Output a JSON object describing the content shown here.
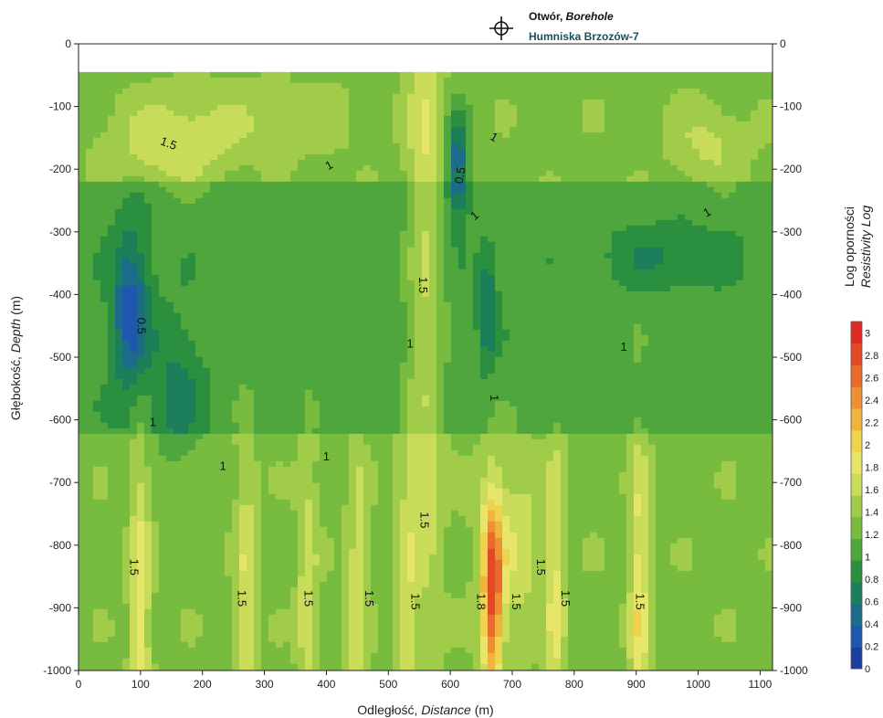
{
  "chart_data": {
    "type": "heatmap",
    "title": "",
    "xlabel": {
      "plain": "Odległość, ",
      "italic": "Distance",
      "unit": " (m)"
    },
    "ylabel": {
      "plain": "Głębokość, ",
      "italic": "Depth",
      "unit": " (m)"
    },
    "colorbar_label": {
      "line1": "Log oporności",
      "line2": "Resistivity Log"
    },
    "well": {
      "label_plain": "Otwór, ",
      "label_italic": "Borehole",
      "name": "Humniska Brzozów-7",
      "x": 625
    },
    "xlim": [
      0,
      1120
    ],
    "ylim": [
      -1000,
      0
    ],
    "data_top_depth": -45,
    "xticks": [
      0,
      100,
      200,
      300,
      400,
      500,
      600,
      700,
      800,
      900,
      1000,
      1100
    ],
    "yticks": [
      0,
      -100,
      -200,
      -300,
      -400,
      -500,
      -600,
      -700,
      -800,
      -900,
      -1000
    ],
    "colorbar_ticks": [
      "0",
      "0.2",
      "0.4",
      "0.6",
      "0.8",
      "1",
      "1.2",
      "1.4",
      "1.6",
      "1.8",
      "2",
      "2.2",
      "2.4",
      "2.6",
      "2.8",
      "3"
    ],
    "colorbar_range": [
      0,
      3.1
    ],
    "colorscale": [
      "#1a3d9e",
      "#1f57b0",
      "#1c6b8a",
      "#1a7f5a",
      "#2a9040",
      "#4ea63c",
      "#77bb3f",
      "#a0cc4a",
      "#c9dc5a",
      "#e8e66a",
      "#efd34e",
      "#f0b43e",
      "#ee8f35",
      "#e86a2c",
      "#e24a26",
      "#dc2b22"
    ],
    "grid": false,
    "contour_labels": [
      {
        "text": "1.5",
        "x": 145,
        "y": -160,
        "rot": 20
      },
      {
        "text": "1",
        "x": 405,
        "y": -195,
        "rot": -30
      },
      {
        "text": "0.5",
        "x": 617,
        "y": -210,
        "rot": -80
      },
      {
        "text": "1",
        "x": 670,
        "y": -150,
        "rot": 30
      },
      {
        "text": "1",
        "x": 640,
        "y": -275,
        "rot": -40
      },
      {
        "text": "1",
        "x": 1015,
        "y": -270,
        "rot": -30
      },
      {
        "text": "1.5",
        "x": 555,
        "y": -385,
        "rot": 90
      },
      {
        "text": "0.5",
        "x": 100,
        "y": -450,
        "rot": 90
      },
      {
        "text": "1",
        "x": 535,
        "y": -480,
        "rot": 0
      },
      {
        "text": "1",
        "x": 880,
        "y": -485,
        "rot": 0
      },
      {
        "text": "1",
        "x": 670,
        "y": -565,
        "rot": 90
      },
      {
        "text": "1",
        "x": 120,
        "y": -605,
        "rot": 0
      },
      {
        "text": "1",
        "x": 400,
        "y": -660,
        "rot": 0
      },
      {
        "text": "1",
        "x": 233,
        "y": -675,
        "rot": 0
      },
      {
        "text": "1.5",
        "x": 557,
        "y": -760,
        "rot": 90
      },
      {
        "text": "1.5",
        "x": 745,
        "y": -835,
        "rot": 90
      },
      {
        "text": "1.5",
        "x": 88,
        "y": -835,
        "rot": 90
      },
      {
        "text": "1.5",
        "x": 262,
        "y": -885,
        "rot": 90
      },
      {
        "text": "1.5",
        "x": 370,
        "y": -885,
        "rot": 90
      },
      {
        "text": "1.5",
        "x": 468,
        "y": -885,
        "rot": 90
      },
      {
        "text": "1.5",
        "x": 542,
        "y": -890,
        "rot": 90
      },
      {
        "text": "1.8",
        "x": 648,
        "y": -890,
        "rot": 90
      },
      {
        "text": "1.5",
        "x": 705,
        "y": -890,
        "rot": 90
      },
      {
        "text": "1.5",
        "x": 785,
        "y": -885,
        "rot": 90
      },
      {
        "text": "1.5",
        "x": 905,
        "y": -890,
        "rot": 90
      }
    ]
  }
}
